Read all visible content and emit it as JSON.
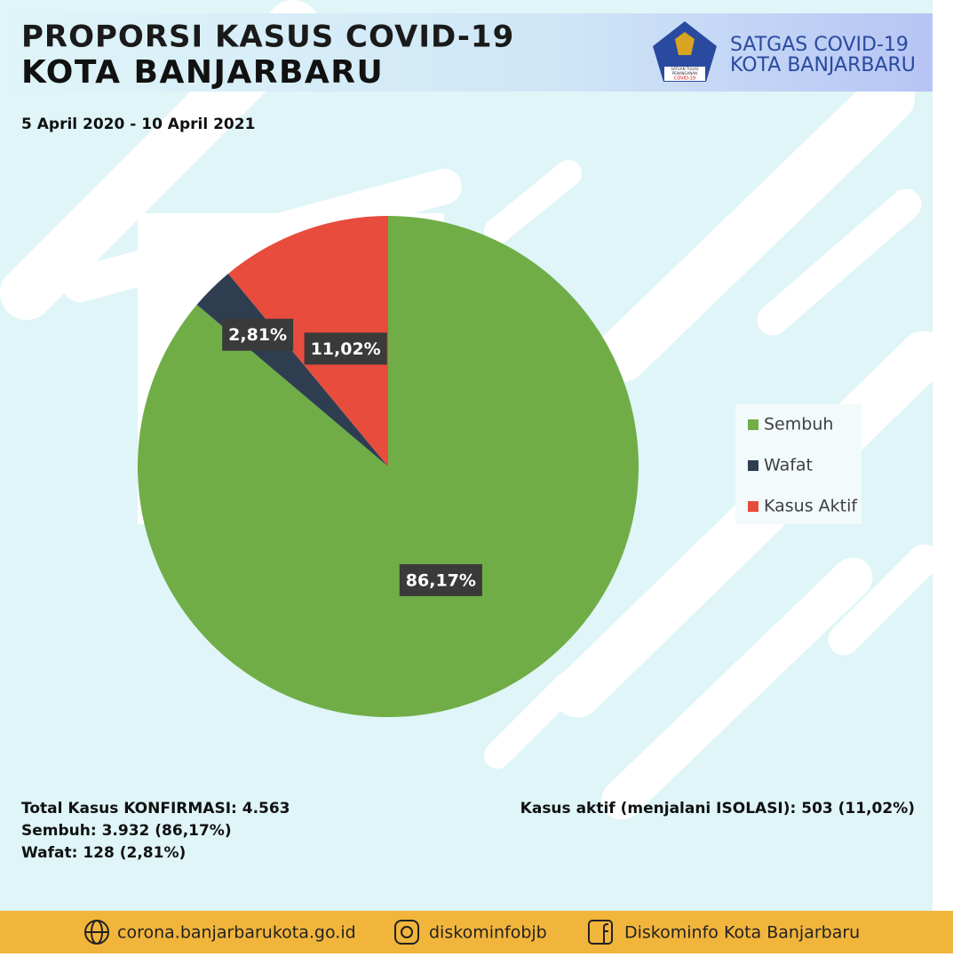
{
  "header": {
    "title_line1": "PROPORSI KASUS COVID-19",
    "title_line2": "KOTA BANJARBARU",
    "org_line1": "SATGAS COVID-19",
    "org_line2": "KOTA BANJARBARU",
    "logo_lines": [
      "SATUAN TUGAS",
      "PENANGANAN",
      "COVID-19"
    ]
  },
  "period": "5 April 2020 - 10 April 2021",
  "chart_data": {
    "type": "pie",
    "categories": [
      "Sembuh",
      "Wafat",
      "Kasus Aktif"
    ],
    "values": [
      86.17,
      2.81,
      11.02
    ],
    "value_labels": [
      "86,17%",
      "2,81%",
      "11,02%"
    ],
    "colors": [
      "#70ad47",
      "#2e3e50",
      "#e84c3d"
    ],
    "legend": "right"
  },
  "stats_left": [
    "Total Kasus KONFIRMASI: 4.563",
    "Sembuh: 3.932 (86,17%)",
    "Wafat: 128 (2,81%)"
  ],
  "stats_right": "Kasus aktif (menjalani ISOLASI): 503 (11,02%)",
  "footer": {
    "website": "corona.banjarbarukota.go.id",
    "instagram": "diskominfobjb",
    "facebook": "Diskominfo Kota Banjarbaru"
  }
}
